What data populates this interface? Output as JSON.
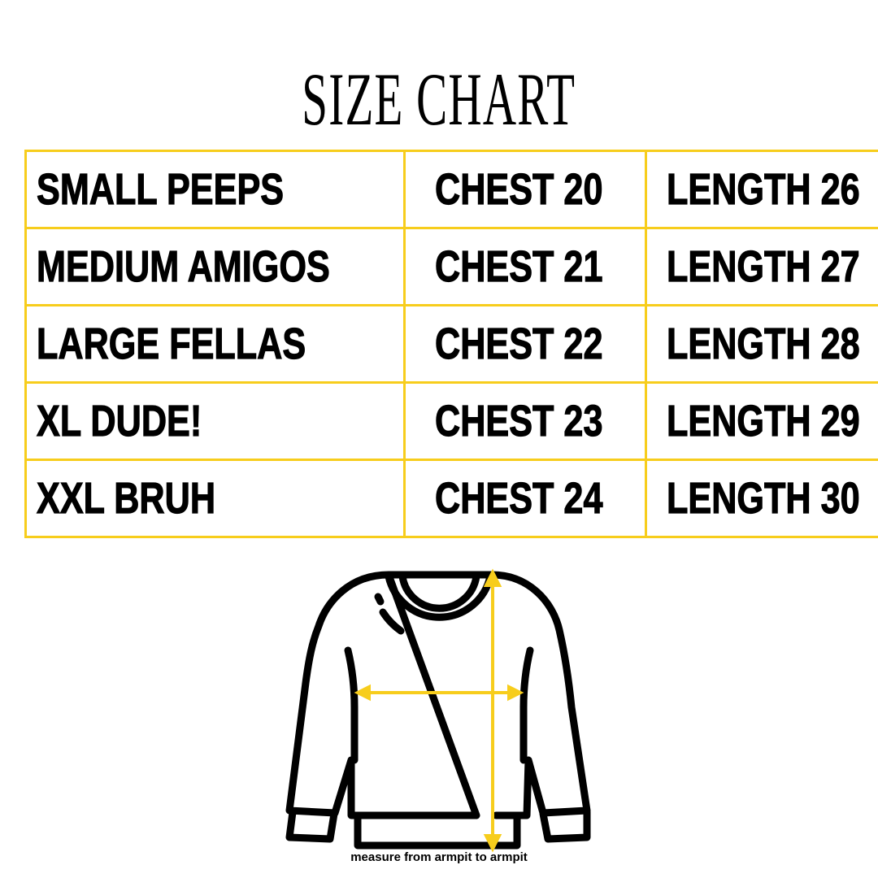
{
  "title": "SIZE CHART",
  "accent_color": "#f7cd1c",
  "rows": [
    {
      "size": "SMALL PEEPS",
      "chest": "CHEST 20",
      "length": "LENGTH 26"
    },
    {
      "size": "MEDIUM AMIGOS",
      "chest": "CHEST 21",
      "length": "LENGTH 27"
    },
    {
      "size": "LARGE FELLAS",
      "chest": "CHEST 22",
      "length": "LENGTH 28"
    },
    {
      "size": "XL DUDE!",
      "chest": "CHEST 23",
      "length": "LENGTH 29"
    },
    {
      "size": "XXL BRUH",
      "chest": "CHEST 24",
      "length": "LENGTH 30"
    }
  ],
  "illustration": {
    "icon": "sweatshirt-icon",
    "caption": "measure from armpit to armpit"
  }
}
